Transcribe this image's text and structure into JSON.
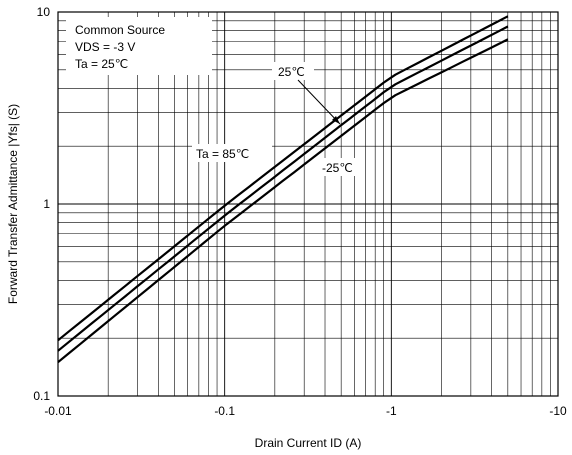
{
  "chart_data": {
    "type": "line",
    "x_scale": "log",
    "y_scale": "log",
    "x_axis_direction": "negative values, magnitude increasing to the right",
    "xlim": [
      -0.01,
      -10
    ],
    "ylim": [
      0.1,
      10
    ],
    "xlabel": "Drain Current  ID (A)",
    "ylabel": "Forward Transfer Admittance  |Yfs|  (S)",
    "x_ticks": [
      "-0.01",
      "-0.1",
      "-1",
      "-10"
    ],
    "y_ticks": [
      "0.1",
      "1",
      "10"
    ],
    "grid": true,
    "conditions": [
      "Common Source",
      "VDS = -3 V",
      "Ta = 25℃"
    ],
    "series": [
      {
        "name": "Ta = 85℃",
        "x": [
          -0.01,
          -0.1,
          -1,
          -5
        ],
        "y": [
          0.195,
          0.98,
          4.6,
          9.5
        ]
      },
      {
        "name": "25℃",
        "x": [
          -0.01,
          -0.1,
          -1,
          -5
        ],
        "y": [
          0.172,
          0.87,
          4.1,
          8.4
        ]
      },
      {
        "name": "-25℃",
        "x": [
          -0.01,
          -0.1,
          -1,
          -5
        ],
        "y": [
          0.15,
          0.77,
          3.6,
          7.2
        ]
      }
    ]
  }
}
